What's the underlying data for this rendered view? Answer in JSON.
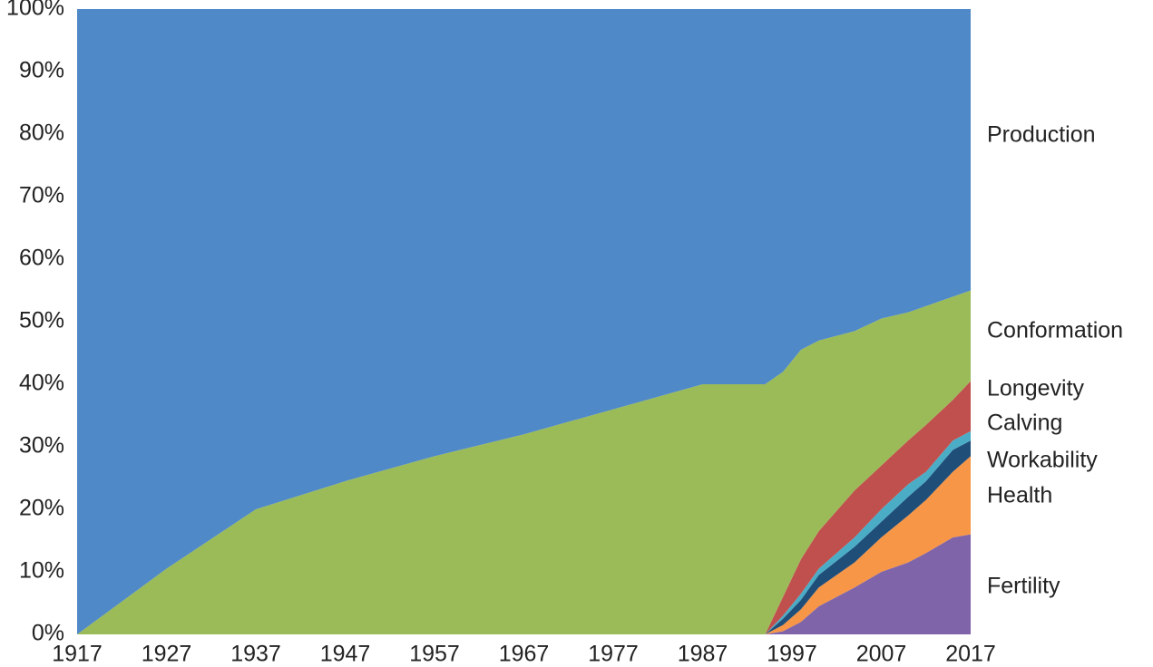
{
  "chart_data": {
    "type": "stacked_area_percent",
    "x": [
      1917,
      1927,
      1937,
      1947,
      1957,
      1967,
      1977,
      1987,
      1994,
      1996,
      1998,
      2000,
      2004,
      2007,
      2010,
      2012,
      2015,
      2017
    ],
    "xlim": [
      1917,
      2017
    ],
    "xticks": [
      1917,
      1927,
      1937,
      1947,
      1957,
      1967,
      1977,
      1987,
      1997,
      2007,
      2017
    ],
    "ylim": [
      0,
      100
    ],
    "yticks": [
      {
        "value": 0,
        "label": "0%"
      },
      {
        "value": 10,
        "label": "10%"
      },
      {
        "value": 20,
        "label": "20%"
      },
      {
        "value": 30,
        "label": "30%"
      },
      {
        "value": 40,
        "label": "40%"
      },
      {
        "value": 50,
        "label": "50%"
      },
      {
        "value": 60,
        "label": "60%"
      },
      {
        "value": 70,
        "label": "70%"
      },
      {
        "value": 80,
        "label": "80%"
      },
      {
        "value": 90,
        "label": "90%"
      },
      {
        "value": 100,
        "label": "100%"
      }
    ],
    "series": [
      {
        "name": "Fertility",
        "color": "#8064a9",
        "values": [
          0,
          0,
          0,
          0,
          0,
          0,
          0,
          0,
          0,
          0.5,
          2,
          4.5,
          7.5,
          10,
          11.5,
          13,
          15.5,
          16
        ]
      },
      {
        "name": "Health",
        "color": "#f79646",
        "values": [
          0,
          0,
          0,
          0,
          0,
          0,
          0,
          0,
          0,
          1,
          2,
          3,
          4,
          5.5,
          7.5,
          8.5,
          10.5,
          12.5
        ]
      },
      {
        "name": "Workability",
        "color": "#1f4e79",
        "values": [
          0,
          0,
          0,
          0,
          0,
          0,
          0,
          0,
          0,
          1,
          1.5,
          2,
          2.5,
          2.5,
          3,
          3,
          3.5,
          2.5
        ]
      },
      {
        "name": "Calving",
        "color": "#4bacc6",
        "values": [
          0,
          0,
          0,
          0,
          0,
          0,
          0,
          0,
          0,
          0.5,
          1,
          1,
          1.5,
          2,
          2,
          1.5,
          1.5,
          1.5
        ]
      },
      {
        "name": "Longevity",
        "color": "#c0504d",
        "values": [
          0,
          0,
          0,
          0,
          0,
          0,
          0,
          0,
          0,
          3,
          5.5,
          6,
          7.5,
          7,
          7,
          7.5,
          6.5,
          8
        ]
      },
      {
        "name": "Conformation",
        "color": "#9bbb59",
        "values": [
          0,
          10.5,
          20,
          24.5,
          28.5,
          32,
          36,
          40,
          40,
          36,
          33.5,
          30.5,
          25.5,
          23.5,
          20.5,
          19,
          16.5,
          14.5
        ]
      },
      {
        "name": "Production",
        "color": "#4f89c8",
        "values": [
          100,
          89.5,
          80,
          75.5,
          71.5,
          68,
          64,
          60,
          60,
          58,
          54.5,
          53,
          51.5,
          49.5,
          48.5,
          47.5,
          46,
          45
        ]
      }
    ]
  }
}
